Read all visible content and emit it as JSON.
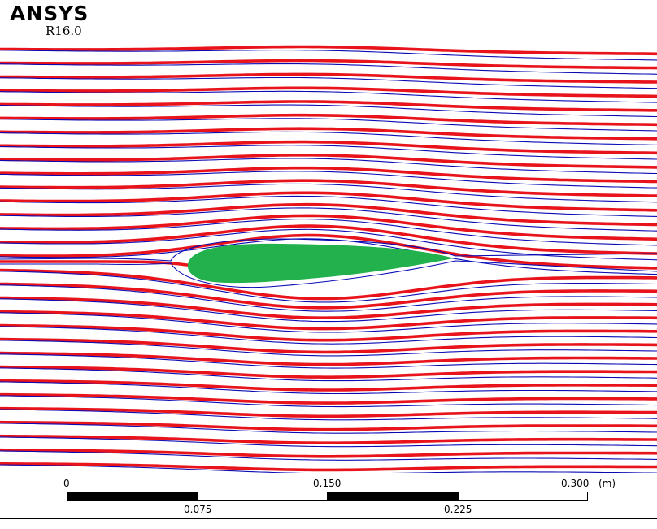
{
  "logo": {
    "brand": "ANSYS",
    "release": "R16.0"
  },
  "colors": {
    "streamline_red": "#e8131b",
    "streamline_blue": "#0b0bb5",
    "airfoil": "#22b14c",
    "background": "#ffffff"
  },
  "scale_bar": {
    "unit": "(m)",
    "top_labels": [
      "0",
      "0.150",
      "0.300"
    ],
    "bottom_labels": [
      "0.075",
      "0.225"
    ]
  }
}
